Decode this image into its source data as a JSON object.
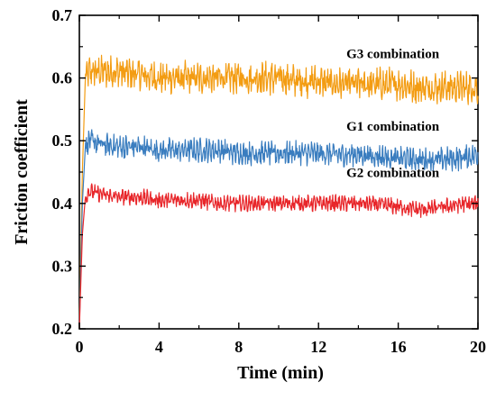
{
  "chart_data": {
    "type": "line",
    "xlabel": "Time (min)",
    "ylabel": "Friction coefficient",
    "xlim": [
      0,
      20
    ],
    "ylim": [
      0.2,
      0.7
    ],
    "x_ticks": [
      "0",
      "4",
      "8",
      "12",
      "16",
      "20"
    ],
    "y_ticks": [
      "0.2",
      "0.3",
      "0.4",
      "0.5",
      "0.6",
      "0.7"
    ],
    "grid": false,
    "series": [
      {
        "name": "G3 combination",
        "color": "#f39c12",
        "start": 0.2,
        "x": [
          0.0,
          0.15,
          0.3,
          0.5,
          1,
          2,
          3,
          4,
          5,
          6,
          7,
          8,
          9,
          10,
          11,
          12,
          13,
          14,
          15,
          16,
          17,
          18,
          19,
          20
        ],
        "y": [
          0.2,
          0.45,
          0.6,
          0.61,
          0.61,
          0.61,
          0.605,
          0.6,
          0.6,
          0.6,
          0.6,
          0.6,
          0.6,
          0.6,
          0.595,
          0.595,
          0.59,
          0.59,
          0.59,
          0.59,
          0.585,
          0.585,
          0.585,
          0.585
        ],
        "amplitude": 0.018
      },
      {
        "name": "G1 combination",
        "color": "#3a7dbf",
        "start": 0.2,
        "x": [
          0.0,
          0.15,
          0.3,
          0.5,
          1,
          2,
          3,
          4,
          5,
          6,
          7,
          8,
          9,
          10,
          11,
          12,
          13,
          14,
          15,
          16,
          17,
          18,
          19,
          20
        ],
        "y": [
          0.2,
          0.4,
          0.49,
          0.5,
          0.495,
          0.49,
          0.49,
          0.485,
          0.485,
          0.485,
          0.485,
          0.48,
          0.48,
          0.48,
          0.48,
          0.48,
          0.478,
          0.478,
          0.475,
          0.472,
          0.47,
          0.47,
          0.472,
          0.478
        ],
        "amplitude": 0.013
      },
      {
        "name": "G2 combination",
        "color": "#e8262a",
        "start": 0.2,
        "x": [
          0.0,
          0.15,
          0.3,
          0.5,
          1,
          2,
          3,
          4,
          5,
          6,
          7,
          8,
          9,
          10,
          11,
          12,
          13,
          14,
          15,
          16,
          17,
          18,
          19,
          20
        ],
        "y": [
          0.2,
          0.35,
          0.41,
          0.42,
          0.415,
          0.41,
          0.41,
          0.405,
          0.405,
          0.405,
          0.4,
          0.4,
          0.4,
          0.4,
          0.4,
          0.4,
          0.4,
          0.4,
          0.398,
          0.395,
          0.39,
          0.393,
          0.398,
          0.4
        ],
        "amplitude": 0.009
      }
    ],
    "annotations": [
      {
        "text": "G3 combination",
        "x": 13.4,
        "y": 0.632
      },
      {
        "text": "G1 combination",
        "x": 13.4,
        "y": 0.516
      },
      {
        "text": "G2 combination",
        "x": 13.4,
        "y": 0.442
      }
    ]
  }
}
